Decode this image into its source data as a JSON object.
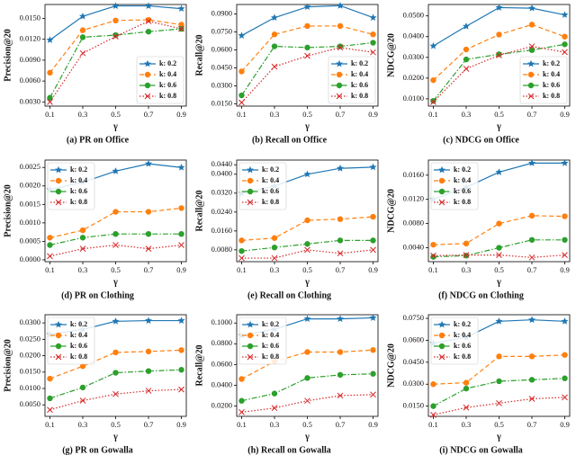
{
  "chart_data": [
    {
      "type": "line",
      "title": "(a) PR on Office",
      "xlabel": "γ",
      "ylabel": "Precision@20",
      "legend": "lower right",
      "x": [
        0.1,
        0.3,
        0.5,
        0.7,
        0.9
      ],
      "xlim": [
        0.07,
        0.93
      ],
      "xticks": [
        0.1,
        0.3,
        0.5,
        0.7,
        0.9
      ],
      "ylim": [
        0.0024,
        0.017
      ],
      "yticks": [
        {
          "value": 0.003,
          "label": "0.0030"
        },
        {
          "value": 0.006,
          "label": "0.0060"
        },
        {
          "value": 0.009,
          "label": "0.0090"
        },
        {
          "value": 0.012,
          "label": "0.0120"
        },
        {
          "value": 0.015,
          "label": "0.0150"
        }
      ],
      "series": [
        {
          "name": "k: 0.2",
          "color": "#1f77b4",
          "marker": "star",
          "dash": "solid",
          "values": [
            0.0119,
            0.0153,
            0.0168,
            0.0168,
            0.0164
          ]
        },
        {
          "name": "k: 0.4",
          "color": "#ff7f0e",
          "marker": "circle",
          "dash": "dashed",
          "values": [
            0.0072,
            0.0133,
            0.0147,
            0.0148,
            0.0141
          ]
        },
        {
          "name": "k: 0.6",
          "color": "#2ca02c",
          "marker": "circle",
          "dash": "dashdot",
          "values": [
            0.0036,
            0.0123,
            0.0126,
            0.0131,
            0.0135
          ]
        },
        {
          "name": "k: 0.8",
          "color": "#d62728",
          "marker": "x",
          "dash": "dotted",
          "values": [
            0.003,
            0.01,
            0.0124,
            0.0146,
            0.0135
          ]
        }
      ]
    },
    {
      "type": "line",
      "title": "(b) Recall on Office",
      "xlabel": "γ",
      "ylabel": "Recall@20",
      "legend": "lower right",
      "x": [
        0.1,
        0.3,
        0.5,
        0.7,
        0.9
      ],
      "xlim": [
        0.07,
        0.93
      ],
      "xticks": [
        0.1,
        0.3,
        0.5,
        0.7,
        0.9
      ],
      "ylim": [
        0.013,
        0.098
      ],
      "yticks": [
        {
          "value": 0.015,
          "label": "0.0150"
        },
        {
          "value": 0.03,
          "label": "0.0300"
        },
        {
          "value": 0.045,
          "label": "0.0450"
        },
        {
          "value": 0.06,
          "label": "0.0600"
        },
        {
          "value": 0.075,
          "label": "0.0750"
        },
        {
          "value": 0.09,
          "label": "0.0900"
        }
      ],
      "series": [
        {
          "name": "k: 0.2",
          "color": "#1f77b4",
          "marker": "star",
          "dash": "solid",
          "values": [
            0.072,
            0.087,
            0.096,
            0.097,
            0.087
          ]
        },
        {
          "name": "k: 0.4",
          "color": "#ff7f0e",
          "marker": "circle",
          "dash": "dashed",
          "values": [
            0.042,
            0.073,
            0.08,
            0.08,
            0.073
          ]
        },
        {
          "name": "k: 0.6",
          "color": "#2ca02c",
          "marker": "circle",
          "dash": "dashdot",
          "values": [
            0.022,
            0.063,
            0.062,
            0.063,
            0.066
          ]
        },
        {
          "name": "k: 0.8",
          "color": "#d62728",
          "marker": "x",
          "dash": "dotted",
          "values": [
            0.016,
            0.046,
            0.055,
            0.062,
            0.058
          ]
        }
      ]
    },
    {
      "type": "line",
      "title": "(c) NDCG on Office",
      "xlabel": "γ",
      "ylabel": "NDCG@20",
      "legend": "lower right",
      "x": [
        0.1,
        0.3,
        0.5,
        0.7,
        0.9
      ],
      "xlim": [
        0.07,
        0.93
      ],
      "xticks": [
        0.1,
        0.3,
        0.5,
        0.7,
        0.9
      ],
      "ylim": [
        0.0065,
        0.0555
      ],
      "yticks": [
        {
          "value": 0.01,
          "label": "0.0100"
        },
        {
          "value": 0.02,
          "label": "0.0200"
        },
        {
          "value": 0.03,
          "label": "0.0300"
        },
        {
          "value": 0.04,
          "label": "0.0400"
        },
        {
          "value": 0.05,
          "label": "0.0500"
        }
      ],
      "series": [
        {
          "name": "k: 0.2",
          "color": "#1f77b4",
          "marker": "star",
          "dash": "solid",
          "values": [
            0.0355,
            0.045,
            0.054,
            0.0537,
            0.0505
          ]
        },
        {
          "name": "k: 0.4",
          "color": "#ff7f0e",
          "marker": "circle",
          "dash": "dashed",
          "values": [
            0.019,
            0.0338,
            0.041,
            0.0458,
            0.04
          ]
        },
        {
          "name": "k: 0.6",
          "color": "#2ca02c",
          "marker": "circle",
          "dash": "dashdot",
          "values": [
            0.009,
            0.029,
            0.0315,
            0.0335,
            0.0363
          ]
        },
        {
          "name": "k: 0.8",
          "color": "#d62728",
          "marker": "x",
          "dash": "dotted",
          "values": [
            0.0085,
            0.0245,
            0.031,
            0.0353,
            0.0325
          ]
        }
      ]
    },
    {
      "type": "line",
      "title": "(d) PR on Clothing",
      "xlabel": "γ",
      "ylabel": "Precision@20",
      "legend": "upper left",
      "x": [
        0.1,
        0.3,
        0.5,
        0.7,
        0.9
      ],
      "xlim": [
        0.07,
        0.93
      ],
      "xticks": [
        0.1,
        0.3,
        0.5,
        0.7,
        0.9
      ],
      "ylim": [
        -5e-05,
        0.0027
      ],
      "yticks": [
        {
          "value": 0,
          "label": "0.0000"
        },
        {
          "value": 0.0005,
          "label": "0.0005"
        },
        {
          "value": 0.001,
          "label": "0.0010"
        },
        {
          "value": 0.0015,
          "label": "0.0015"
        },
        {
          "value": 0.002,
          "label": "0.0020"
        },
        {
          "value": 0.0025,
          "label": "0.0025"
        }
      ],
      "series": [
        {
          "name": "k: 0.2",
          "color": "#1f77b4",
          "marker": "star",
          "dash": "solid",
          "values": [
            0.0019,
            0.0021,
            0.0024,
            0.0026,
            0.0025
          ]
        },
        {
          "name": "k: 0.4",
          "color": "#ff7f0e",
          "marker": "circle",
          "dash": "dashed",
          "values": [
            0.0006,
            0.0008,
            0.0013,
            0.0013,
            0.0014
          ]
        },
        {
          "name": "k: 0.6",
          "color": "#2ca02c",
          "marker": "circle",
          "dash": "dashdot",
          "values": [
            0.0004,
            0.0006,
            0.0007,
            0.0007,
            0.0007
          ]
        },
        {
          "name": "k: 0.8",
          "color": "#d62728",
          "marker": "x",
          "dash": "dotted",
          "values": [
            0.0001,
            0.0003,
            0.0004,
            0.0003,
            0.0004
          ]
        }
      ]
    },
    {
      "type": "line",
      "title": "(e) Recall on Clothing",
      "xlabel": "γ",
      "ylabel": "Recall@20",
      "legend": "upper left",
      "x": [
        0.1,
        0.3,
        0.5,
        0.7,
        0.9
      ],
      "xlim": [
        0.07,
        0.93
      ],
      "xticks": [
        0.1,
        0.3,
        0.5,
        0.7,
        0.9
      ],
      "ylim": [
        0.003,
        0.046
      ],
      "yticks": [
        {
          "value": 0.008,
          "label": "0.0080"
        },
        {
          "value": 0.016,
          "label": "0.0160"
        },
        {
          "value": 0.024,
          "label": "0.0240"
        },
        {
          "value": 0.032,
          "label": "0.0320"
        },
        {
          "value": 0.04,
          "label": "0.0400"
        },
        {
          "value": 0.044,
          "label": "0.0440"
        }
      ],
      "series": [
        {
          "name": "k: 0.2",
          "color": "#1f77b4",
          "marker": "star",
          "dash": "solid",
          "values": [
            0.032,
            0.035,
            0.04,
            0.0425,
            0.043
          ]
        },
        {
          "name": "k: 0.4",
          "color": "#ff7f0e",
          "marker": "circle",
          "dash": "dashed",
          "values": [
            0.012,
            0.013,
            0.0205,
            0.021,
            0.022
          ]
        },
        {
          "name": "k: 0.6",
          "color": "#2ca02c",
          "marker": "circle",
          "dash": "dashdot",
          "values": [
            0.0075,
            0.009,
            0.0105,
            0.012,
            0.012
          ]
        },
        {
          "name": "k: 0.8",
          "color": "#d62728",
          "marker": "x",
          "dash": "dotted",
          "values": [
            0.0045,
            0.0045,
            0.008,
            0.0065,
            0.008
          ]
        }
      ]
    },
    {
      "type": "line",
      "title": "(f) NDCG on Clothing",
      "xlabel": "γ",
      "ylabel": "NDCG@20",
      "legend": "upper left",
      "x": [
        0.1,
        0.3,
        0.5,
        0.7,
        0.9
      ],
      "xlim": [
        0.07,
        0.93
      ],
      "xticks": [
        0.1,
        0.3,
        0.5,
        0.7,
        0.9
      ],
      "ylim": [
        0.0017,
        0.0185
      ],
      "yticks": [
        {
          "value": 0.004,
          "label": "0.0040"
        },
        {
          "value": 0.008,
          "label": "0.0080"
        },
        {
          "value": 0.012,
          "label": "0.0120"
        },
        {
          "value": 0.016,
          "label": "0.0160"
        }
      ],
      "series": [
        {
          "name": "k: 0.2",
          "color": "#1f77b4",
          "marker": "star",
          "dash": "solid",
          "values": [
            0.012,
            0.014,
            0.0165,
            0.018,
            0.018
          ]
        },
        {
          "name": "k: 0.4",
          "color": "#ff7f0e",
          "marker": "circle",
          "dash": "dashed",
          "values": [
            0.0045,
            0.0047,
            0.008,
            0.0093,
            0.0092
          ]
        },
        {
          "name": "k: 0.6",
          "color": "#2ca02c",
          "marker": "circle",
          "dash": "dashdot",
          "values": [
            0.0025,
            0.0027,
            0.004,
            0.0053,
            0.0053
          ]
        },
        {
          "name": "k: 0.8",
          "color": "#d62728",
          "marker": "x",
          "dash": "dotted",
          "values": [
            0.0027,
            0.0028,
            0.0028,
            0.0024,
            0.0028
          ]
        }
      ]
    },
    {
      "type": "line",
      "title": "(g) PR on Gowalla",
      "xlabel": "γ",
      "ylabel": "Precision@20",
      "legend": "upper left",
      "x": [
        0.1,
        0.3,
        0.5,
        0.7,
        0.9
      ],
      "xlim": [
        0.07,
        0.93
      ],
      "xticks": [
        0.1,
        0.3,
        0.5,
        0.7,
        0.9
      ],
      "ylim": [
        0.0015,
        0.0325
      ],
      "yticks": [
        {
          "value": 0.005,
          "label": "0.0050"
        },
        {
          "value": 0.01,
          "label": "0.0100"
        },
        {
          "value": 0.015,
          "label": "0.0150"
        },
        {
          "value": 0.02,
          "label": "0.0200"
        },
        {
          "value": 0.025,
          "label": "0.0250"
        },
        {
          "value": 0.03,
          "label": "0.0300"
        }
      ],
      "series": [
        {
          "name": "k: 0.2",
          "color": "#1f77b4",
          "marker": "star",
          "dash": "solid",
          "values": [
            0.0265,
            0.028,
            0.0305,
            0.0307,
            0.0307
          ]
        },
        {
          "name": "k: 0.4",
          "color": "#ff7f0e",
          "marker": "circle",
          "dash": "dashed",
          "values": [
            0.013,
            0.0168,
            0.021,
            0.0213,
            0.0217
          ]
        },
        {
          "name": "k: 0.6",
          "color": "#2ca02c",
          "marker": "circle",
          "dash": "dashdot",
          "values": [
            0.007,
            0.0103,
            0.0148,
            0.0153,
            0.0157
          ]
        },
        {
          "name": "k: 0.8",
          "color": "#d62728",
          "marker": "x",
          "dash": "dotted",
          "values": [
            0.0035,
            0.0063,
            0.0083,
            0.0093,
            0.0097
          ]
        }
      ]
    },
    {
      "type": "line",
      "title": "(h) Recall on Gowalla",
      "xlabel": "γ",
      "ylabel": "Recall@20",
      "legend": "upper left",
      "x": [
        0.1,
        0.3,
        0.5,
        0.7,
        0.9
      ],
      "xlim": [
        0.07,
        0.93
      ],
      "xticks": [
        0.1,
        0.3,
        0.5,
        0.7,
        0.9
      ],
      "ylim": [
        0.01,
        0.108
      ],
      "yticks": [
        {
          "value": 0.02,
          "label": "0.0200"
        },
        {
          "value": 0.04,
          "label": "0.0400"
        },
        {
          "value": 0.06,
          "label": "0.0600"
        },
        {
          "value": 0.08,
          "label": "0.0800"
        },
        {
          "value": 0.1,
          "label": "0.1000"
        }
      ],
      "series": [
        {
          "name": "k: 0.2",
          "color": "#1f77b4",
          "marker": "star",
          "dash": "solid",
          "values": [
            0.088,
            0.094,
            0.104,
            0.104,
            0.105
          ]
        },
        {
          "name": "k: 0.4",
          "color": "#ff7f0e",
          "marker": "circle",
          "dash": "dashed",
          "values": [
            0.046,
            0.063,
            0.072,
            0.072,
            0.074
          ]
        },
        {
          "name": "k: 0.6",
          "color": "#2ca02c",
          "marker": "circle",
          "dash": "dashdot",
          "values": [
            0.025,
            0.032,
            0.047,
            0.05,
            0.051
          ]
        },
        {
          "name": "k: 0.8",
          "color": "#d62728",
          "marker": "x",
          "dash": "dotted",
          "values": [
            0.014,
            0.018,
            0.025,
            0.03,
            0.031
          ]
        }
      ]
    },
    {
      "type": "line",
      "title": "(i) NDCG on Gowalla",
      "xlabel": "γ",
      "ylabel": "NDCG@20",
      "legend": "upper left",
      "x": [
        0.1,
        0.3,
        0.5,
        0.7,
        0.9
      ],
      "xlim": [
        0.07,
        0.93
      ],
      "xticks": [
        0.1,
        0.3,
        0.5,
        0.7,
        0.9
      ],
      "ylim": [
        0.008,
        0.0775
      ],
      "yticks": [
        {
          "value": 0.015,
          "label": "0.0150"
        },
        {
          "value": 0.03,
          "label": "0.0300"
        },
        {
          "value": 0.045,
          "label": "0.0450"
        },
        {
          "value": 0.06,
          "label": "0.0600"
        },
        {
          "value": 0.075,
          "label": "0.0750"
        }
      ],
      "series": [
        {
          "name": "k: 0.2",
          "color": "#1f77b4",
          "marker": "star",
          "dash": "solid",
          "values": [
            0.058,
            0.062,
            0.073,
            0.074,
            0.073
          ]
        },
        {
          "name": "k: 0.4",
          "color": "#ff7f0e",
          "marker": "circle",
          "dash": "dashed",
          "values": [
            0.03,
            0.031,
            0.049,
            0.049,
            0.05
          ]
        },
        {
          "name": "k: 0.6",
          "color": "#2ca02c",
          "marker": "circle",
          "dash": "dashdot",
          "values": [
            0.015,
            0.027,
            0.032,
            0.033,
            0.034
          ]
        },
        {
          "name": "k: 0.8",
          "color": "#d62728",
          "marker": "x",
          "dash": "dotted",
          "values": [
            0.009,
            0.014,
            0.017,
            0.02,
            0.021
          ]
        }
      ]
    }
  ]
}
